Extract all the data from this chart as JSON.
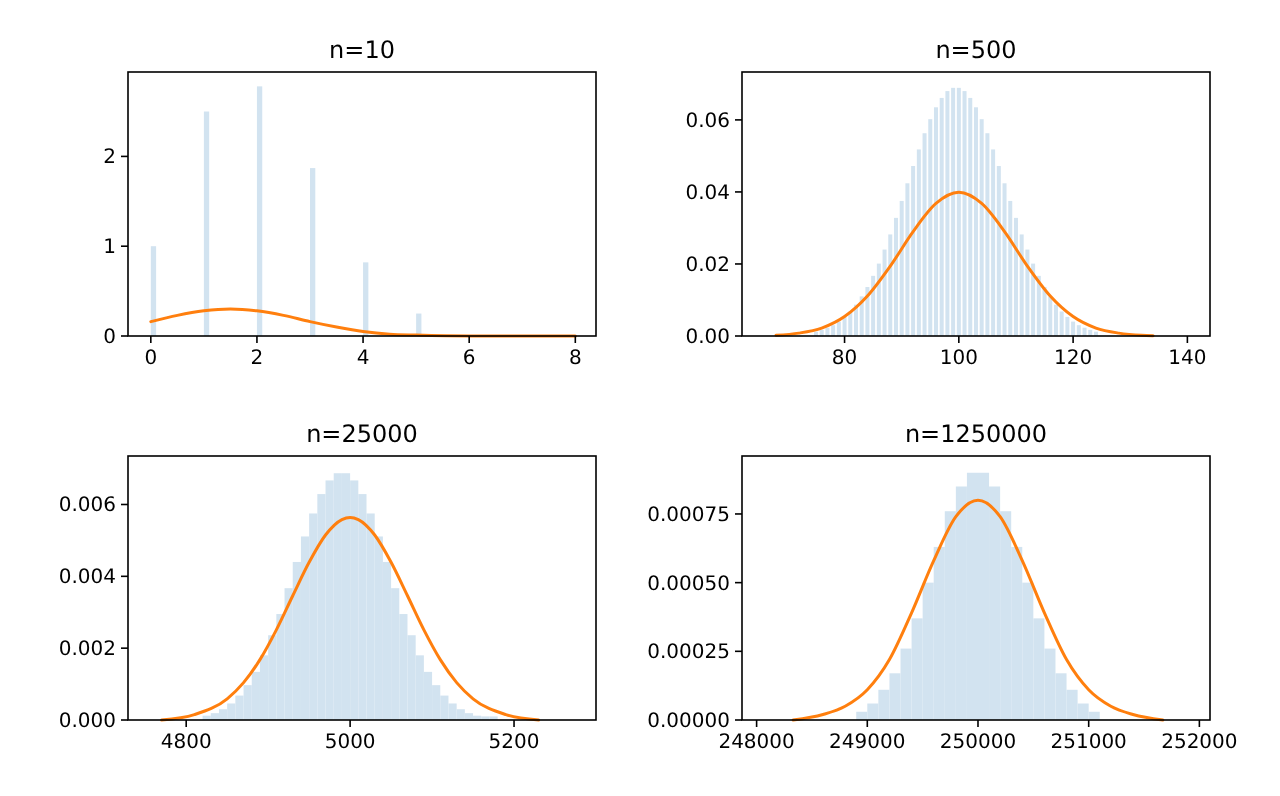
{
  "chart_data": [
    {
      "type": "histogram",
      "title": "n=10",
      "xlim": [
        -0.43,
        8.39
      ],
      "xticks": [
        0,
        2,
        4,
        6,
        8
      ],
      "ylim": [
        0,
        2.94
      ],
      "yticks": [
        0,
        1,
        2
      ],
      "series": [
        {
          "color": "#d2e3f0",
          "bins": [
            0,
            0.1,
            1,
            1.1,
            2,
            2.1,
            3,
            3.1,
            4,
            4.1,
            5,
            5.1
          ],
          "values": [
            1.0,
            0,
            2.5,
            0,
            2.78,
            0,
            1.87,
            0,
            0.82,
            0,
            0.25
          ]
        },
        {
          "type": "line",
          "color": "#ff7f0e",
          "x": [
            0,
            0.5,
            1,
            1.5,
            2,
            2.5,
            3,
            3.5,
            4,
            4.5,
            5,
            6,
            7,
            8
          ],
          "values": [
            0.16,
            0.23,
            0.28,
            0.3,
            0.28,
            0.23,
            0.16,
            0.1,
            0.05,
            0.02,
            0.01,
            0,
            0,
            0
          ]
        }
      ]
    },
    {
      "type": "bar",
      "title": "n=500",
      "xlim": [
        62.05,
        143.96
      ],
      "xticks": [
        80,
        100,
        120,
        140
      ],
      "ylim": [
        0,
        0.0733
      ],
      "yticks": [
        {
          "value": 0,
          "label": "0.00"
        },
        {
          "value": 0.02,
          "label": "0.02"
        },
        {
          "value": 0.04,
          "label": "0.04"
        },
        {
          "value": 0.06,
          "label": "0.06"
        }
      ],
      "series": [
        {
          "color": "#d2e3f0",
          "x": [
            75,
            76,
            77,
            78,
            79,
            80,
            81,
            82,
            83,
            84,
            85,
            86,
            87,
            88,
            89,
            90,
            91,
            92,
            93,
            94,
            95,
            96,
            97,
            98,
            99,
            100,
            101,
            102,
            103,
            104,
            105,
            106,
            107,
            108,
            109,
            110,
            111,
            112,
            113,
            114,
            115,
            116,
            117,
            118,
            119,
            120,
            121,
            122,
            123,
            124
          ],
          "values": [
            0.0012,
            0.0017,
            0.0023,
            0.003,
            0.004,
            0.0053,
            0.0068,
            0.0087,
            0.011,
            0.0136,
            0.0167,
            0.0201,
            0.024,
            0.0282,
            0.0328,
            0.0375,
            0.0424,
            0.0472,
            0.0518,
            0.0563,
            0.0602,
            0.0635,
            0.0661,
            0.068,
            0.0689,
            0.0689,
            0.068,
            0.0661,
            0.0635,
            0.0602,
            0.0563,
            0.0518,
            0.0472,
            0.0424,
            0.0375,
            0.0328,
            0.0282,
            0.024,
            0.0201,
            0.0167,
            0.0136,
            0.011,
            0.0087,
            0.0068,
            0.0053,
            0.004,
            0.003,
            0.0023,
            0.0017,
            0.0012
          ]
        },
        {
          "type": "line",
          "color": "#ff7f0e",
          "x": [
            68,
            72,
            76,
            80,
            84,
            88,
            92,
            96,
            100,
            104,
            108,
            112,
            116,
            120,
            124,
            128,
            132,
            134
          ],
          "values": [
            0.0002,
            0.0008,
            0.0022,
            0.0054,
            0.0111,
            0.0194,
            0.029,
            0.0368,
            0.0399,
            0.0368,
            0.029,
            0.0194,
            0.0111,
            0.0054,
            0.0022,
            0.0008,
            0.0002,
            0.0001
          ]
        }
      ]
    },
    {
      "type": "histogram",
      "title": "n=25000",
      "xlim": [
        4729,
        5300
      ],
      "xticks": [
        4800,
        5000,
        5200
      ],
      "ylim": [
        0,
        0.00735
      ],
      "yticks": [
        {
          "value": 0,
          "label": "0.000"
        },
        {
          "value": 0.002,
          "label": "0.002"
        },
        {
          "value": 0.004,
          "label": "0.004"
        },
        {
          "value": 0.006,
          "label": "0.006"
        }
      ],
      "series": [
        {
          "color": "#d2e3f0",
          "bins": [
            4820,
            4830,
            4840,
            4850,
            4860,
            4870,
            4880,
            4890,
            4900,
            4910,
            4920,
            4930,
            4940,
            4950,
            4960,
            4970,
            4980,
            4990,
            5000,
            5010,
            5020,
            5030,
            5040,
            5050,
            5060,
            5070,
            5080,
            5090,
            5100,
            5110,
            5120,
            5130,
            5140,
            5150,
            5160,
            5170,
            5180
          ],
          "values": [
            0.00012,
            0.00019,
            0.0003,
            0.00046,
            0.00068,
            0.00097,
            0.00134,
            0.0018,
            0.00236,
            0.00295,
            0.00367,
            0.0044,
            0.00511,
            0.00575,
            0.00629,
            0.00667,
            0.00687,
            0.00687,
            0.00667,
            0.00629,
            0.00575,
            0.00511,
            0.0044,
            0.00367,
            0.00295,
            0.00236,
            0.0018,
            0.00134,
            0.00097,
            0.00068,
            0.00046,
            0.0003,
            0.00019,
            0.00012,
            0.0001,
            0.0001
          ]
        },
        {
          "type": "line",
          "color": "#ff7f0e",
          "x": [
            4770,
            4810,
            4850,
            4870,
            4890,
            4910,
            4930,
            4950,
            4970,
            4990,
            5000,
            5010,
            5030,
            5050,
            5070,
            5090,
            5110,
            5130,
            5150,
            5190,
            5230
          ],
          "values": [
            0,
            0.00015,
            0.00059,
            0.00104,
            0.00168,
            0.00251,
            0.00346,
            0.00439,
            0.00515,
            0.00558,
            0.00564,
            0.00558,
            0.00515,
            0.00439,
            0.00346,
            0.00251,
            0.00168,
            0.00104,
            0.00059,
            0.00015,
            0
          ]
        }
      ]
    },
    {
      "type": "histogram",
      "title": "n=1250000",
      "xlim": [
        247868,
        252096
      ],
      "xticks": [
        248000,
        249000,
        250000,
        251000,
        252000
      ],
      "ylim": [
        0,
        0.000961
      ],
      "yticks": [
        {
          "value": 0,
          "label": "0.00000"
        },
        {
          "value": 0.00025,
          "label": "0.00025"
        },
        {
          "value": 0.0005,
          "label": "0.00050"
        },
        {
          "value": 0.00075,
          "label": "0.00075"
        }
      ],
      "series": [
        {
          "color": "#d2e3f0",
          "bins": [
            248900,
            249000,
            249100,
            249200,
            249300,
            249400,
            249500,
            249600,
            249700,
            249800,
            249900,
            250000,
            250100,
            250200,
            250300,
            250400,
            250500,
            250600,
            250700,
            250800,
            250900,
            251000,
            251100
          ],
          "values": [
            3e-05,
            6e-05,
            0.00011,
            0.00017,
            0.00026,
            0.00037,
            0.0005,
            0.00063,
            0.00076,
            0.00085,
            0.0009,
            0.0009,
            0.00085,
            0.00076,
            0.00063,
            0.0005,
            0.00037,
            0.00026,
            0.00017,
            0.00011,
            6e-05,
            3e-05
          ]
        },
        {
          "type": "line",
          "color": "#ff7f0e",
          "x": [
            248330,
            248600,
            248800,
            249000,
            249200,
            249400,
            249600,
            249800,
            250000,
            250200,
            250400,
            250600,
            250800,
            251000,
            251200,
            251400,
            251670
          ],
          "values": [
            0,
            2e-05,
            5e-05,
            0.00011,
            0.00022,
            0.00039,
            0.00058,
            0.00074,
            0.0008,
            0.00074,
            0.00058,
            0.00039,
            0.00022,
            0.00011,
            5e-05,
            2e-05,
            0
          ]
        }
      ]
    }
  ]
}
